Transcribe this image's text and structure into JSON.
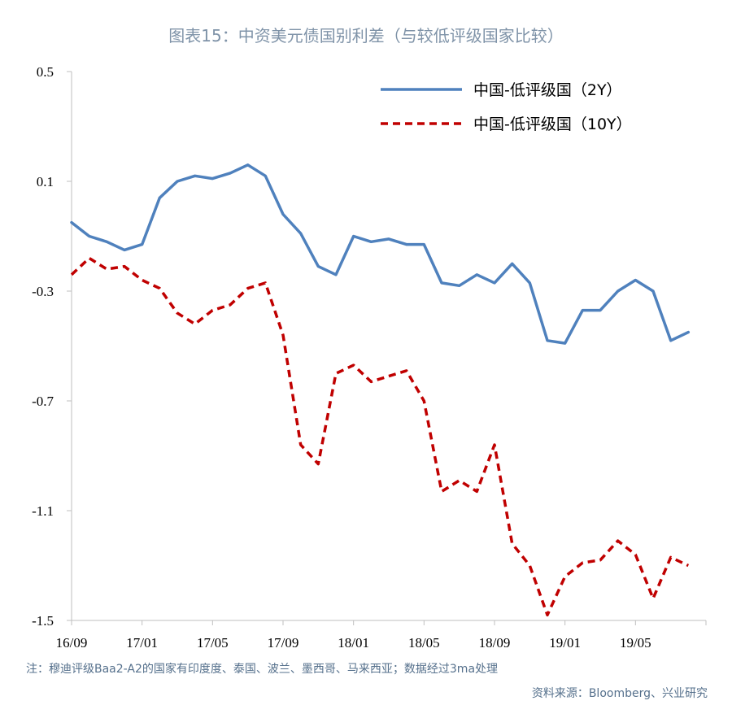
{
  "title": "图表15：中资美元债国别利差（与较低评级国家比较）",
  "note": "注：穆迪评级Baa2-A2的国家有印度度、泰国、波兰、墨西哥、马来西亚；数据经过3ma处理",
  "source": "资料来源：Bloomberg、兴业研究",
  "colors": {
    "series_2y": "#4f81bd",
    "series_10y": "#c00000",
    "axis": "#bfbfbf"
  },
  "chart_data": {
    "type": "line",
    "title": "图表15：中资美元债国别利差（与较低评级国家比较）",
    "xlabel": "",
    "ylabel": "",
    "ylim": [
      -1.5,
      0.5
    ],
    "yticks": [
      0.5,
      0.1,
      -0.3,
      -0.7,
      -1.1,
      -1.5
    ],
    "ytick_labels": [
      "0.5",
      "0.1",
      "-0.3",
      "-0.7",
      "-1.1",
      "-1.5"
    ],
    "xlim": [
      "2016-09",
      "2019-09"
    ],
    "xticks": [
      "2016-09",
      "2017-01",
      "2017-05",
      "2017-09",
      "2018-01",
      "2018-05",
      "2018-09",
      "2019-01",
      "2019-05"
    ],
    "xtick_labels": [
      "16/09",
      "17/01",
      "17/05",
      "17/09",
      "18/01",
      "18/05",
      "18/09",
      "19/01",
      "19/05"
    ],
    "grid": false,
    "legend_position": "top-right",
    "series": [
      {
        "name": "中国-低评级国（2Y）",
        "style": "solid",
        "x": [
          "2016-09",
          "2016-10",
          "2016-11",
          "2016-12",
          "2017-01",
          "2017-02",
          "2017-03",
          "2017-04",
          "2017-05",
          "2017-06",
          "2017-07",
          "2017-08",
          "2017-09",
          "2017-10",
          "2017-11",
          "2017-12",
          "2018-01",
          "2018-02",
          "2018-03",
          "2018-04",
          "2018-05",
          "2018-06",
          "2018-07",
          "2018-08",
          "2018-09",
          "2018-10",
          "2018-11",
          "2018-12",
          "2019-01",
          "2019-02",
          "2019-03",
          "2019-04",
          "2019-05",
          "2019-06",
          "2019-07",
          "2019-08"
        ],
        "values": [
          -0.05,
          -0.1,
          -0.12,
          -0.15,
          -0.13,
          0.04,
          0.1,
          0.12,
          0.11,
          0.13,
          0.16,
          0.12,
          -0.02,
          -0.09,
          -0.21,
          -0.24,
          -0.1,
          -0.12,
          -0.11,
          -0.13,
          -0.13,
          -0.27,
          -0.28,
          -0.24,
          -0.27,
          -0.2,
          -0.27,
          -0.48,
          -0.49,
          -0.37,
          -0.37,
          -0.3,
          -0.26,
          -0.3,
          -0.48,
          -0.45
        ]
      },
      {
        "name": "中国-低评级国（10Y）",
        "style": "dashed",
        "x": [
          "2016-09",
          "2016-10",
          "2016-11",
          "2016-12",
          "2017-01",
          "2017-02",
          "2017-03",
          "2017-04",
          "2017-05",
          "2017-06",
          "2017-07",
          "2017-08",
          "2017-09",
          "2017-10",
          "2017-11",
          "2017-12",
          "2018-01",
          "2018-02",
          "2018-03",
          "2018-04",
          "2018-05",
          "2018-06",
          "2018-07",
          "2018-08",
          "2018-09",
          "2018-10",
          "2018-11",
          "2018-12",
          "2019-01",
          "2019-02",
          "2019-03",
          "2019-04",
          "2019-05",
          "2019-06",
          "2019-07",
          "2019-08"
        ],
        "values": [
          -0.24,
          -0.18,
          -0.22,
          -0.21,
          -0.26,
          -0.29,
          -0.38,
          -0.42,
          -0.37,
          -0.35,
          -0.29,
          -0.27,
          -0.46,
          -0.86,
          -0.93,
          -0.6,
          -0.57,
          -0.63,
          -0.61,
          -0.59,
          -0.7,
          -1.03,
          -0.99,
          -1.03,
          -0.86,
          -1.22,
          -1.3,
          -1.48,
          -1.34,
          -1.29,
          -1.28,
          -1.21,
          -1.26,
          -1.42,
          -1.27,
          -1.3
        ]
      }
    ]
  }
}
